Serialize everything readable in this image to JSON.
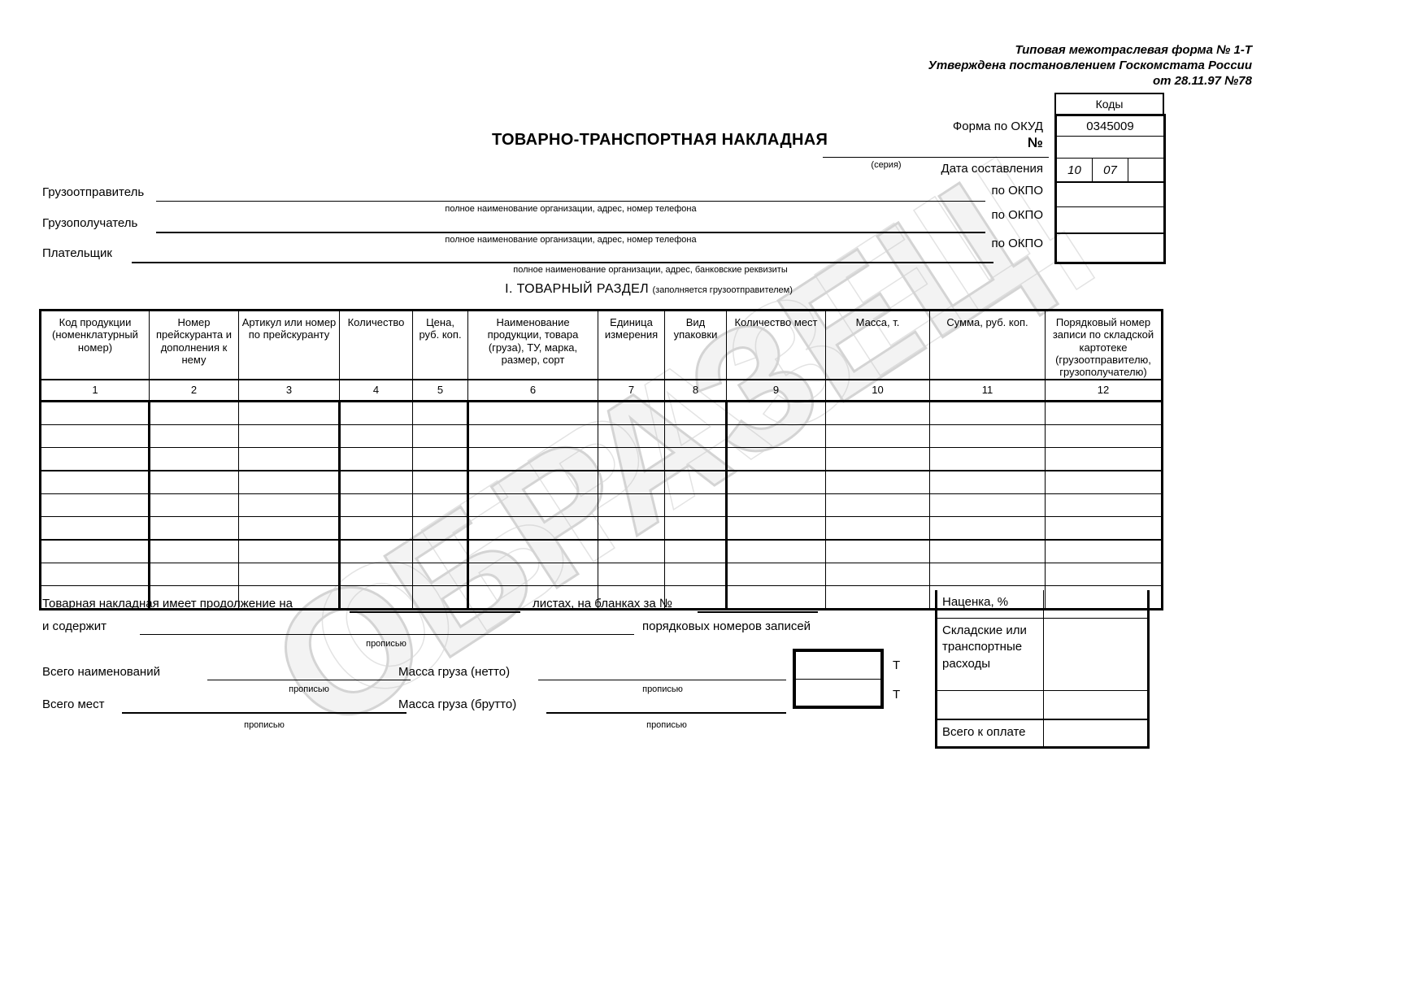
{
  "watermark": "ОБРАЗЕЦ",
  "approval": {
    "line1": "Типовая межотраслевая форма № 1-Т",
    "line2": "Утверждена постановлением Госкомстата России",
    "line3": "от 28.11.97 №78"
  },
  "codes": {
    "header": "Коды",
    "okud_label": "Форма по ОКУД",
    "okud_value": "0345009",
    "number_label": "№",
    "date_label": "Дата составления",
    "date_day": "10",
    "date_month": "07",
    "date_year": "",
    "okpo1_label": "по ОКПО",
    "okpo2_label": "по ОКПО",
    "okpo3_label": "по ОКПО"
  },
  "title": {
    "text": "ТОВАРНО-ТРАНСПОРТНАЯ НАКЛАДНАЯ",
    "series_hint": "(серия)"
  },
  "parties": {
    "consignor_label": "Грузоотправитель",
    "consignor_hint": "полное наименование организации, адрес, номер телефона",
    "consignee_label": "Грузополучатель",
    "consignee_hint": "полное наименование организации, адрес, номер телефона",
    "payer_label": "Плательщик",
    "payer_hint": "полное наименование организации, адрес, банковские реквизиты"
  },
  "section": {
    "title": "I. ТОВАРНЫЙ РАЗДЕЛ",
    "subtitle": "(заполняется грузоотправителем)"
  },
  "table": {
    "headers": [
      "Код продукции (номенклатурный номер)",
      "Номер прейскуранта и дополнения к нему",
      "Артикул или номер по прейскуранту",
      "Количество",
      "Цена, руб. коп.",
      "Наименование продукции, товара (груза), ТУ, марка, размер, сорт",
      "Единица измерения",
      "Вид упаковки",
      "Количество мест",
      "Масса, т.",
      "Сумма, руб. коп.",
      "Порядковый номер записи по складской картотеке (грузоотправителю, грузополучателю)"
    ],
    "numbers": [
      "1",
      "2",
      "3",
      "4",
      "5",
      "6",
      "7",
      "8",
      "9",
      "10",
      "11",
      "12"
    ],
    "empty_row_count": 9
  },
  "footer": {
    "continuation_text": "Товарная накладная имеет продолжение на",
    "sheets_text": "листах, на бланках за №",
    "contains_text": "и содержит",
    "records_text": "порядковых номеров записей",
    "in_words": "прописью",
    "total_items_label": "Всего наименований",
    "total_places_label": "Всего мест",
    "mass_net_label": "Масса груза (нетто)",
    "mass_gross_label": "Масса груза (брутто)",
    "ton_unit": "Т",
    "markup_label": "Наценка, %",
    "expenses_label": "Складские или транспортные расходы",
    "total_due_label": "Всего к оплате"
  }
}
